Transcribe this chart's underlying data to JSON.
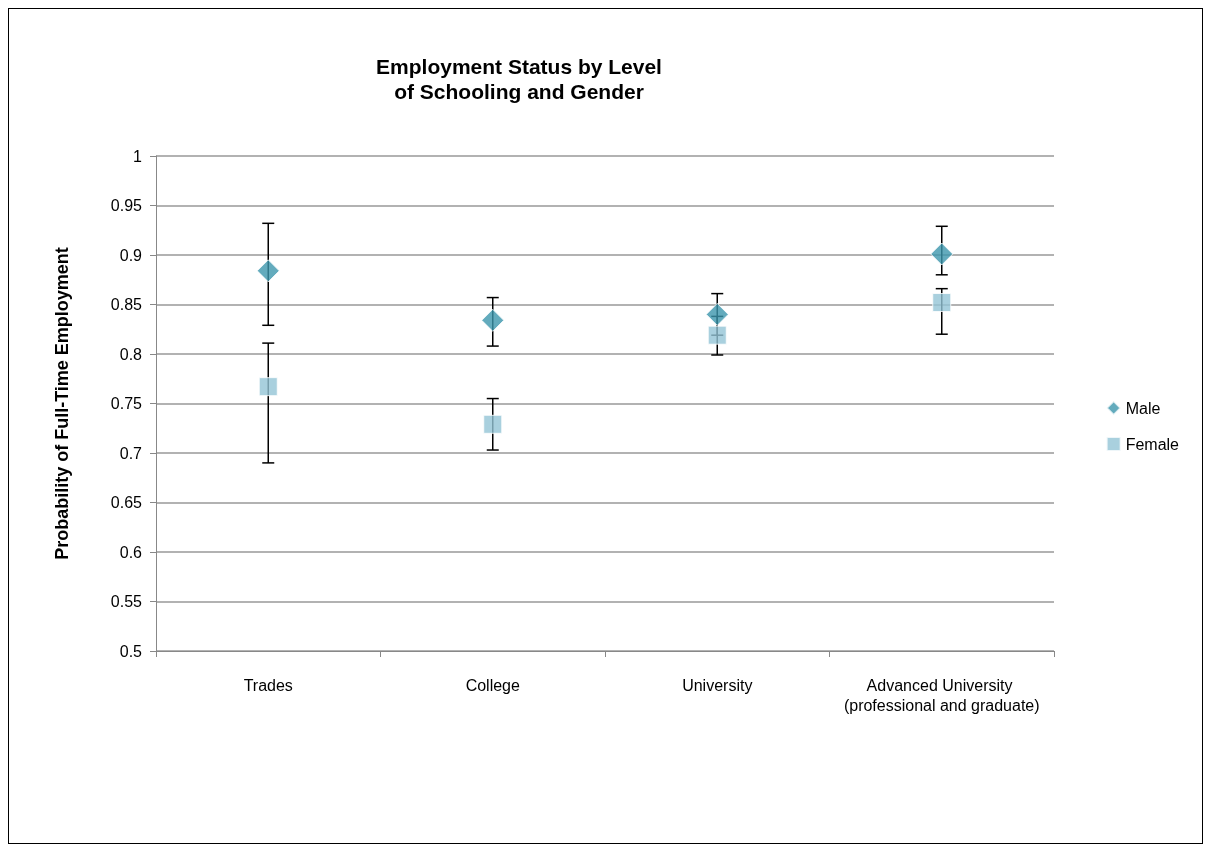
{
  "chart_data": {
    "type": "scatter",
    "title": "Employment Status by Level\nof Schooling and Gender",
    "ylabel": "Probability of Full-Time Employment",
    "categories": [
      "Trades",
      "College",
      "University",
      "Advanced University (professional and graduate)"
    ],
    "series": [
      {
        "name": "Male",
        "color": "#3c96ad",
        "marker": "diamond",
        "values": [
          0.884,
          0.834,
          0.84,
          0.901
        ],
        "errors": [
          [
            0.829,
            0.932
          ],
          [
            0.808,
            0.857
          ],
          [
            0.819,
            0.861
          ],
          [
            0.88,
            0.929
          ]
        ]
      },
      {
        "name": "Female",
        "color": "#93c4d6",
        "marker": "square",
        "values": [
          0.767,
          0.729,
          0.819,
          0.852
        ],
        "errors": [
          [
            0.69,
            0.811
          ],
          [
            0.703,
            0.755
          ],
          [
            0.799,
            0.838
          ],
          [
            0.82,
            0.866
          ]
        ]
      }
    ],
    "ylim": [
      0.5,
      1
    ],
    "yticks": [
      0.5,
      0.55,
      0.6,
      0.65,
      0.7,
      0.75,
      0.8,
      0.85,
      0.9,
      0.95,
      1
    ],
    "grid": "y",
    "legend": "right"
  }
}
